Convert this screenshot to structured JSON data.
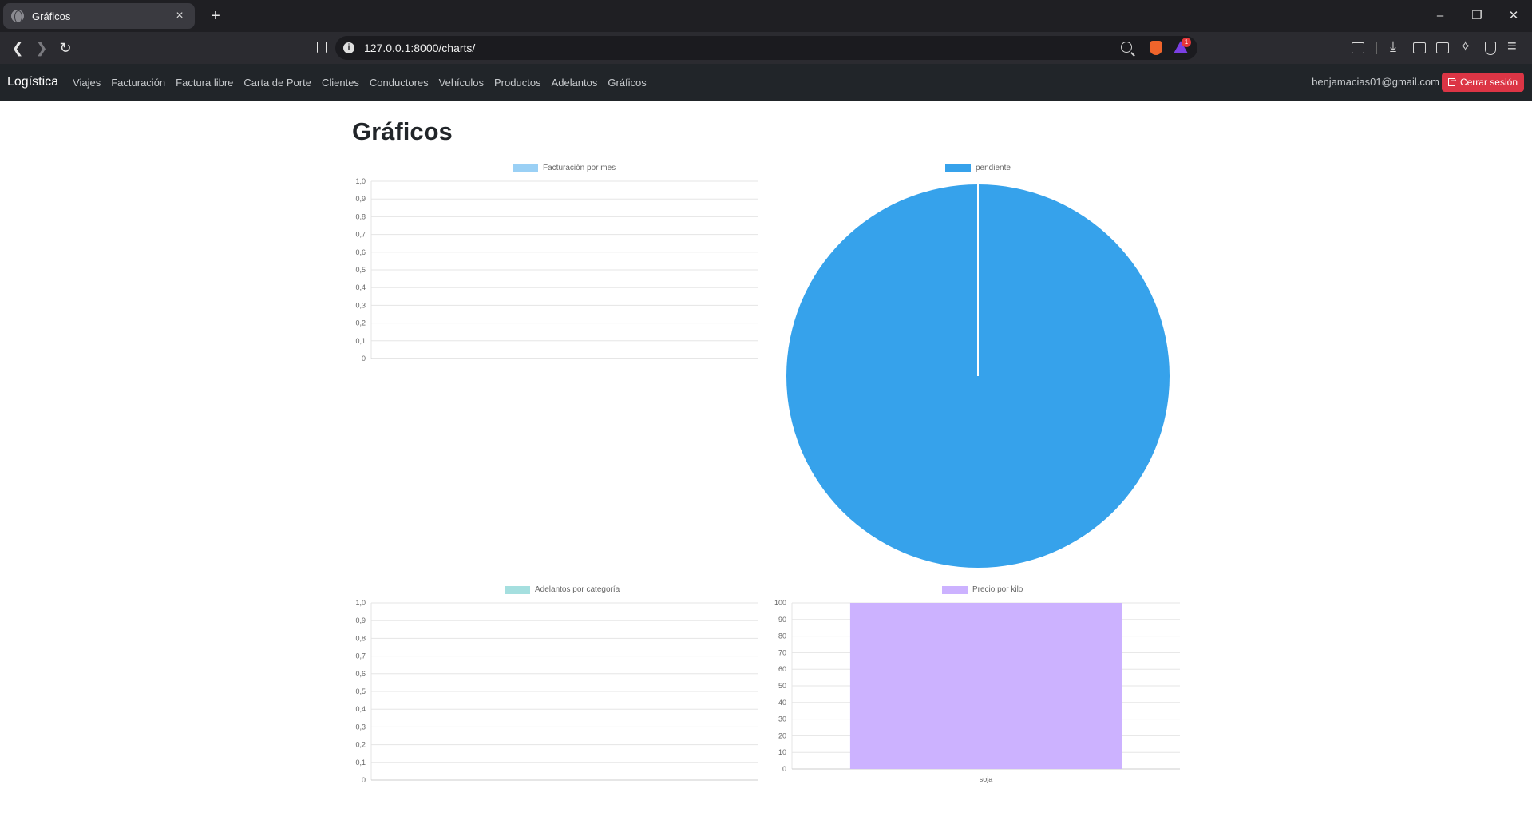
{
  "browser": {
    "tab_title": "Gráficos",
    "tab_close": "×",
    "new_tab": "+",
    "url": "127.0.0.1:8000/charts/",
    "rewards_badge": "1",
    "window_controls": [
      "–",
      "❐",
      "✕"
    ]
  },
  "navbar": {
    "brand": "Logística",
    "links": [
      "Viajes",
      "Facturación",
      "Factura libre",
      "Carta de Porte",
      "Clientes",
      "Conductores",
      "Vehículos",
      "Productos",
      "Adelantos",
      "Gráficos"
    ],
    "user_email": "benjamacias01@gmail.com",
    "logout_label": "Cerrar sesión",
    "logout_color": "#dc3545"
  },
  "page": {
    "title": "Gráficos"
  },
  "chart_data": [
    {
      "type": "bar",
      "legend": "Facturación por mes",
      "color": "#9ad0f5",
      "categories": [],
      "values": [],
      "ylim": [
        0,
        1
      ],
      "yticks": [
        "1,0",
        "0,9",
        "0,8",
        "0,7",
        "0,6",
        "0,5",
        "0,4",
        "0,3",
        "0,2",
        "0,1",
        "0"
      ],
      "grid": true,
      "legend_position": "top"
    },
    {
      "type": "pie",
      "legend": "pendiente",
      "color": "#36a2eb",
      "categories": [
        "pendiente"
      ],
      "values": [
        1
      ],
      "legend_position": "top"
    },
    {
      "type": "bar",
      "legend": "Adelantos por categoría",
      "color": "#a5dfdf",
      "categories": [],
      "values": [],
      "ylim": [
        0,
        1
      ],
      "yticks": [
        "1,0",
        "0,9",
        "0,8",
        "0,7",
        "0,6",
        "0,5",
        "0,4",
        "0,3",
        "0,2",
        "0,1",
        "0"
      ],
      "grid": true,
      "legend_position": "top"
    },
    {
      "type": "bar",
      "legend": "Precio por kilo",
      "color": "#ccb2ff",
      "categories": [
        "soja"
      ],
      "values": [
        100
      ],
      "ylim": [
        0,
        100
      ],
      "yticks": [
        "100",
        "90",
        "80",
        "70",
        "60",
        "50",
        "40",
        "30",
        "20",
        "10",
        "0"
      ],
      "grid": true,
      "legend_position": "top"
    }
  ]
}
